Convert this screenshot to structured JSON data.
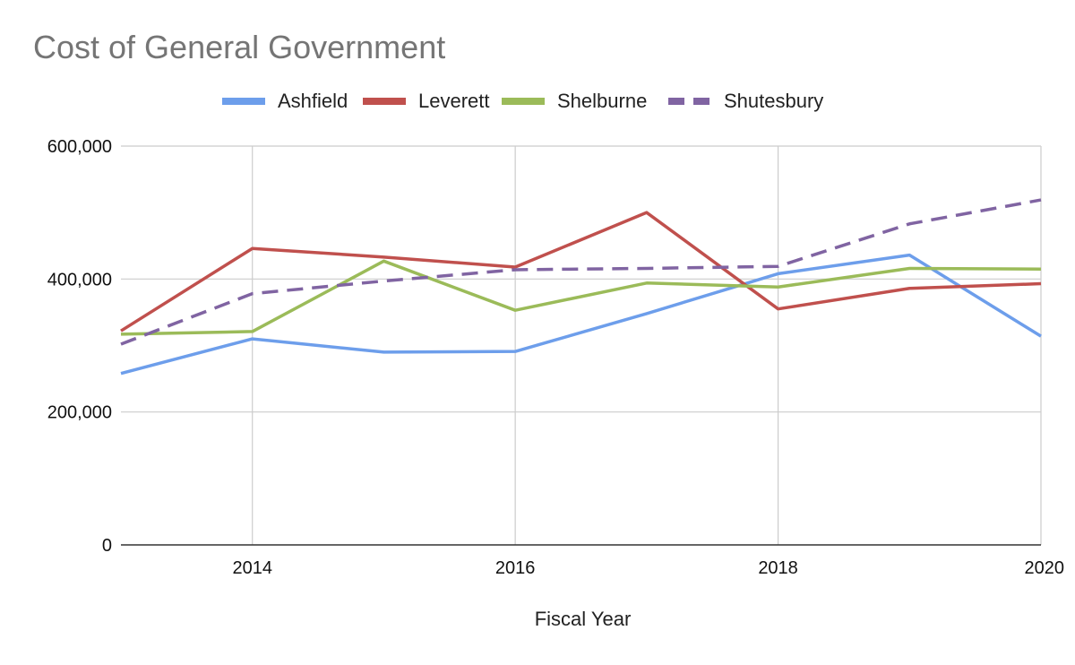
{
  "chart_data": {
    "type": "line",
    "title": "Cost of General Government",
    "xlabel": "Fiscal Year",
    "ylabel": "",
    "x": [
      2013,
      2014,
      2015,
      2016,
      2017,
      2018,
      2019,
      2020
    ],
    "xlim": [
      2013,
      2020
    ],
    "ylim": [
      0,
      600000
    ],
    "x_ticks": [
      2014,
      2016,
      2018,
      2020
    ],
    "y_ticks": [
      0,
      200000,
      400000,
      600000
    ],
    "x_tick_labels": [
      "2014",
      "2016",
      "2018",
      "2020"
    ],
    "y_tick_labels": [
      "0",
      "200,000",
      "400,000",
      "600,000"
    ],
    "legend_position": "top",
    "grid": true,
    "series": [
      {
        "name": "Ashfield",
        "color": "#6d9eeb",
        "dashed": false,
        "values": [
          258000,
          310000,
          290000,
          291000,
          348000,
          408000,
          436000,
          314000
        ]
      },
      {
        "name": "Leverett",
        "color": "#c0504d",
        "dashed": false,
        "values": [
          322000,
          446000,
          433000,
          418000,
          500000,
          355000,
          386000,
          393000
        ]
      },
      {
        "name": "Shelburne",
        "color": "#9bbb59",
        "dashed": false,
        "values": [
          317000,
          321000,
          427000,
          353000,
          394000,
          388000,
          416000,
          415000
        ]
      },
      {
        "name": "Shutesbury",
        "color": "#8064a2",
        "dashed": true,
        "values": [
          302000,
          378000,
          397000,
          414000,
          416000,
          419000,
          483000,
          519000
        ]
      }
    ]
  }
}
